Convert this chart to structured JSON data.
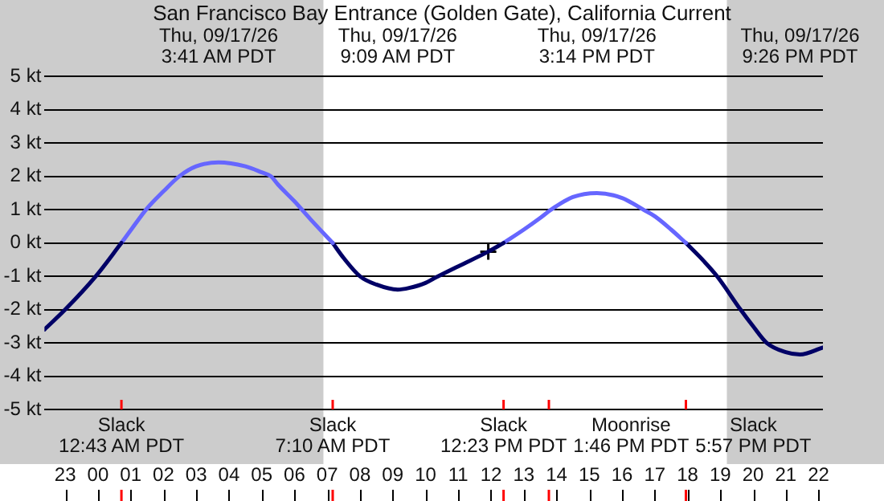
{
  "chart_data": {
    "type": "line",
    "title": "San Francisco Bay Entrance (Golden Gate), California Current",
    "xlim": [
      "--09-16T22:22",
      "--09-17T22:08"
    ],
    "xticks": [
      {
        "value": "--09-16T23:00",
        "label": "23"
      },
      {
        "value": "--09-17T00:00",
        "label": "00"
      },
      {
        "value": "--09-17T01:00",
        "label": "01"
      },
      {
        "value": "--09-17T02:00",
        "label": "02"
      },
      {
        "value": "--09-17T03:00",
        "label": "03"
      },
      {
        "value": "--09-17T04:00",
        "label": "04"
      },
      {
        "value": "--09-17T05:00",
        "label": "05"
      },
      {
        "value": "--09-17T06:00",
        "label": "06"
      },
      {
        "value": "--09-17T07:00",
        "label": "07"
      },
      {
        "value": "--09-17T08:00",
        "label": "08"
      },
      {
        "value": "--09-17T09:00",
        "label": "09"
      },
      {
        "value": "--09-17T10:00",
        "label": "10"
      },
      {
        "value": "--09-17T11:00",
        "label": "11"
      },
      {
        "value": "--09-17T12:00",
        "label": "12"
      },
      {
        "value": "--09-17T13:00",
        "label": "13"
      },
      {
        "value": "--09-17T14:00",
        "label": "14"
      },
      {
        "value": "--09-17T15:00",
        "label": "15"
      },
      {
        "value": "--09-17T16:00",
        "label": "16"
      },
      {
        "value": "--09-17T17:00",
        "label": "17"
      },
      {
        "value": "--09-17T18:00",
        "label": "18"
      },
      {
        "value": "--09-17T19:00",
        "label": "19"
      },
      {
        "value": "--09-17T20:00",
        "label": "20"
      },
      {
        "value": "--09-17T21:00",
        "label": "21"
      },
      {
        "value": "--09-17T22:00",
        "label": "22"
      }
    ],
    "ylim": [
      -5,
      5
    ],
    "yticks": [
      {
        "value": -5,
        "label": "-5 kt"
      },
      {
        "value": -4,
        "label": "-4 kt"
      },
      {
        "value": -3,
        "label": "-3 kt"
      },
      {
        "value": -2,
        "label": "-2 kt"
      },
      {
        "value": -1,
        "label": "-1 kt"
      },
      {
        "value": 0,
        "label": "0 kt"
      },
      {
        "value": 1,
        "label": "1 kt"
      },
      {
        "value": 2,
        "label": "2 kt"
      },
      {
        "value": 3,
        "label": "3 kt"
      },
      {
        "value": 4,
        "label": "4 kt"
      },
      {
        "value": 5,
        "label": "5 kt"
      }
    ],
    "grid": "y",
    "series": [
      {
        "color": "#000066",
        "x": [
          "--09-16T22:22",
          "--09-16T23:00",
          "--09-16T23:56",
          "--09-17T00:43"
        ],
        "values": [
          -2.6,
          -2.0,
          -1.0,
          0
        ]
      },
      {
        "color": "#6666ff",
        "x": [
          "--09-17T00:43",
          "--09-17T01:00",
          "--09-17T01:29",
          "--09-17T02:00",
          "--09-17T02:29",
          "--09-17T03:00",
          "--09-17T03:41",
          "--09-17T04:30",
          "--09-17T05:00",
          "--09-17T05:17",
          "--09-17T05:30",
          "--09-17T06:00",
          "--09-17T06:30",
          "--09-17T07:10"
        ],
        "values": [
          0,
          0.38,
          1.02,
          1.55,
          2.0,
          2.3,
          2.42,
          2.3,
          2.12,
          2.0,
          1.75,
          1.25,
          0.7,
          0
        ]
      },
      {
        "color": "#000066",
        "x": [
          "--09-17T07:10",
          "--09-17T07:30",
          "--09-17T08:00",
          "--09-17T08:30",
          "--09-17T09:09",
          "--09-17T09:30",
          "--09-17T10:00",
          "--09-17T10:16",
          "--09-17T11:00",
          "--09-17T11:55",
          "--09-17T12:23"
        ],
        "values": [
          0,
          -0.45,
          -1.0,
          -1.25,
          -1.4,
          -1.35,
          -1.2,
          -1.06,
          -0.7,
          -0.26,
          0
        ]
      },
      {
        "color": "#6666ff",
        "x": [
          "--09-17T12:23",
          "--09-17T13:00",
          "--09-17T13:30",
          "--09-17T13:50",
          "--09-17T14:30",
          "--09-17T15:14",
          "--09-17T16:00",
          "--09-17T16:39",
          "--09-17T17:00",
          "--09-17T17:30",
          "--09-17T17:57"
        ],
        "values": [
          0,
          0.4,
          0.75,
          1.0,
          1.38,
          1.5,
          1.35,
          1.0,
          0.8,
          0.4,
          0
        ]
      },
      {
        "color": "#000066",
        "x": [
          "--09-17T17:57",
          "--09-17T18:30",
          "--09-17T18:54",
          "--09-17T19:37",
          "--09-17T20:00",
          "--09-17T20:25",
          "--09-17T21:00",
          "--09-17T21:26",
          "--09-17T22:08"
        ],
        "values": [
          0,
          -0.55,
          -1.0,
          -2.0,
          -2.5,
          -3.0,
          -3.28,
          -3.35,
          -3.14
        ]
      },
      {
        "type": "scatter",
        "marker": "cross",
        "color": "#000000",
        "x": [
          "--09-17T11:55"
        ],
        "values": [
          -0.26
        ]
      }
    ],
    "bands": [
      {
        "axis": "x",
        "from": "--09-16T22:22",
        "to": "--09-17T06:53",
        "color": "#cccccc"
      },
      {
        "axis": "x",
        "from": "--09-17T19:12",
        "to": "--09-17T22:08",
        "color": "#cccccc"
      }
    ],
    "ref_lines": [
      {
        "axis": "x",
        "value": "--09-17T00:43",
        "label": "Slack\n12:43 AM PDT",
        "color": "#ff0000"
      },
      {
        "axis": "x",
        "value": "--09-17T07:10",
        "label": "Slack\n7:10 AM PDT",
        "color": "#ff0000"
      },
      {
        "axis": "x",
        "value": "--09-17T12:23",
        "label": "Slack\n12:23 PM PDT",
        "color": "#ff0000"
      },
      {
        "axis": "x",
        "value": "--09-17T13:46",
        "label": "Moonrise\n1:46 PM PDT",
        "color": "#ff0000"
      },
      {
        "axis": "x",
        "value": "--09-17T17:57",
        "label": "Slack\n5:57 PM PDT",
        "color": "#ff0000"
      }
    ],
    "annotations": [
      "Thu, 09/17/26\n3:41 AM PDT",
      "Thu, 09/17/26\n9:09 AM PDT",
      "Thu, 09/17/26\n3:14 PM PDT",
      "Thu, 09/17/26\n9:26 PM PDT"
    ]
  }
}
